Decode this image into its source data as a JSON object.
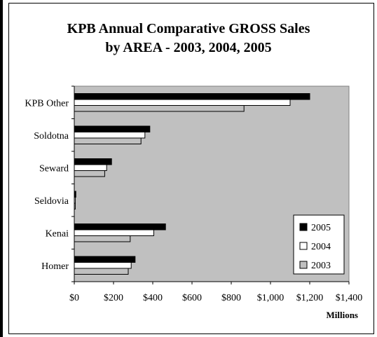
{
  "chart_data": {
    "type": "bar",
    "orientation": "horizontal",
    "title_line1": "KPB Annual Comparative GROSS Sales",
    "title_line2": "by AREA - 2003, 2004, 2005",
    "categories": [
      "KPB Other",
      "Soldotna",
      "Seward",
      "Seldovia",
      "Kenai",
      "Homer"
    ],
    "series": [
      {
        "name": "2005",
        "values": [
          1200,
          385,
          190,
          8,
          465,
          310
        ],
        "color": "#000000"
      },
      {
        "name": "2004",
        "values": [
          1100,
          360,
          165,
          5,
          405,
          290
        ],
        "color": "#ffffff"
      },
      {
        "name": "2003",
        "values": [
          865,
          340,
          155,
          5,
          285,
          275
        ],
        "color": "#c0c0c0"
      }
    ],
    "x_ticks": [
      "$0",
      "$200",
      "$400",
      "$600",
      "$800",
      "$1,000",
      "$1,200",
      "$1,400"
    ],
    "xlim": [
      0,
      1400
    ],
    "xlabel": "Millions",
    "legend_position": "bottom-right",
    "plot_background": "#c0c0c0",
    "grid": false
  }
}
